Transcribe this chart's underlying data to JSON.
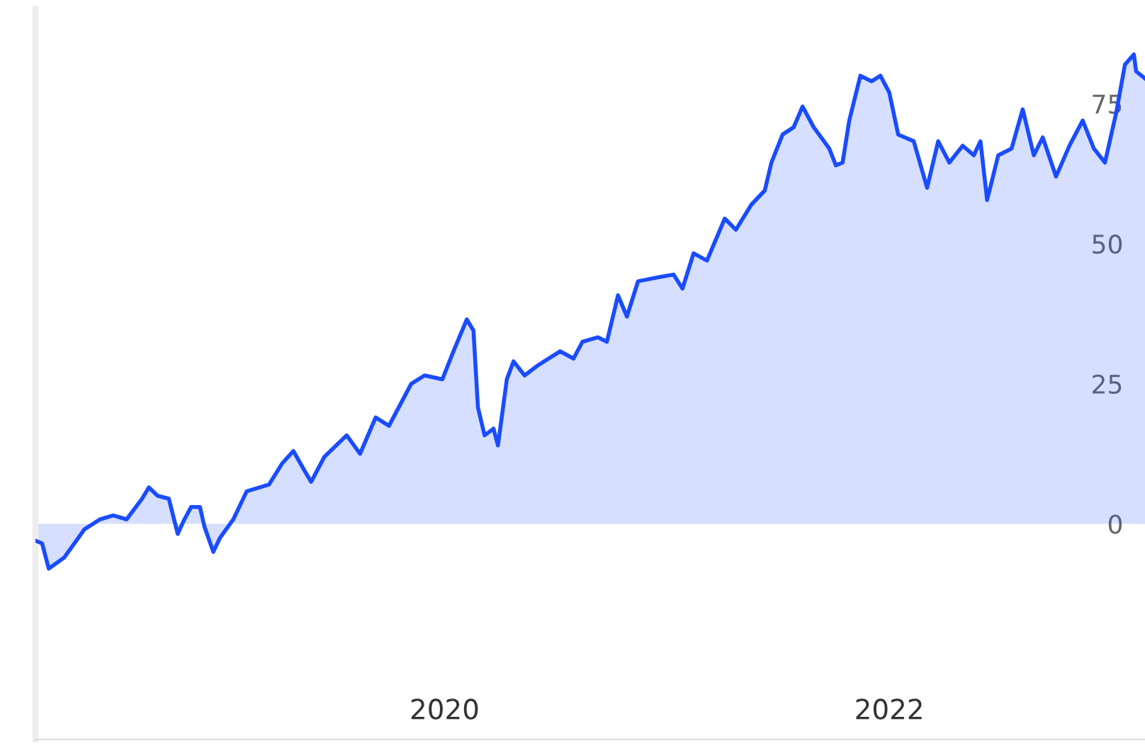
{
  "chart_data": {
    "type": "area",
    "x": [
      2018.16,
      2018.19,
      2018.22,
      2018.29,
      2018.38,
      2018.45,
      2018.51,
      2018.57,
      2018.64,
      2018.67,
      2018.71,
      2018.76,
      2018.8,
      2018.83,
      2018.86,
      2018.9,
      2018.92,
      2018.96,
      2018.99,
      2019.05,
      2019.11,
      2019.21,
      2019.27,
      2019.32,
      2019.37,
      2019.4,
      2019.46,
      2019.56,
      2019.62,
      2019.69,
      2019.75,
      2019.85,
      2019.91,
      2019.99,
      2020.04,
      2020.1,
      2020.13,
      2020.15,
      2020.18,
      2020.22,
      2020.24,
      2020.28,
      2020.31,
      2020.36,
      2020.42,
      2020.52,
      2020.58,
      2020.62,
      2020.69,
      2020.73,
      2020.78,
      2020.82,
      2020.87,
      2020.96,
      2021.03,
      2021.07,
      2021.12,
      2021.18,
      2021.26,
      2021.31,
      2021.38,
      2021.44,
      2021.47,
      2021.52,
      2021.57,
      2021.61,
      2021.66,
      2021.73,
      2021.76,
      2021.79,
      2021.82,
      2021.87,
      2021.92,
      2021.96,
      2022.0,
      2022.04,
      2022.11,
      2022.17,
      2022.22,
      2022.27,
      2022.33,
      2022.38,
      2022.41,
      2022.44,
      2022.49,
      2022.55,
      2022.6,
      2022.65,
      2022.69,
      2022.75,
      2022.81,
      2022.87,
      2022.92,
      2022.97,
      2023.02,
      2023.06,
      2023.1,
      2023.11,
      2023.15
    ],
    "series": [
      {
        "color": "#1a4cff",
        "values": [
          -3,
          -3.5,
          -8,
          -6,
          -1,
          0.8,
          1.5,
          0.8,
          4.5,
          6.5,
          5,
          4.5,
          -1.8,
          0.8,
          3,
          3,
          -0.5,
          -5,
          -2.5,
          0.8,
          5.8,
          7,
          10.8,
          13,
          9.5,
          7.5,
          12,
          15.8,
          12.5,
          19,
          17.5,
          25,
          26.5,
          25.8,
          30.8,
          36.5,
          34.5,
          20.8,
          15.8,
          17,
          14,
          25.8,
          29,
          26.5,
          28.3,
          30.8,
          29.5,
          32.5,
          33.3,
          32.5,
          40.8,
          37,
          43.3,
          44,
          44.5,
          42,
          48.3,
          47,
          54.5,
          52.5,
          57,
          59.5,
          64.5,
          69.5,
          70.8,
          74.5,
          70.8,
          67,
          64,
          64.5,
          72,
          80,
          79,
          80,
          77,
          69.5,
          68.3,
          60,
          68.3,
          64.5,
          67.5,
          65.8,
          68.3,
          57.8,
          65.8,
          67,
          74,
          65.8,
          69,
          62,
          67.5,
          72,
          67,
          64.5,
          73.3,
          82,
          83.8,
          80.8,
          79.5
        ]
      }
    ],
    "xlim": [
      2018.16,
      2023.15
    ],
    "ylim": [
      -38.5,
      92
    ],
    "xticks": [
      2020,
      2022
    ],
    "yticks": [
      0,
      25,
      50,
      75
    ],
    "grid": false
  }
}
